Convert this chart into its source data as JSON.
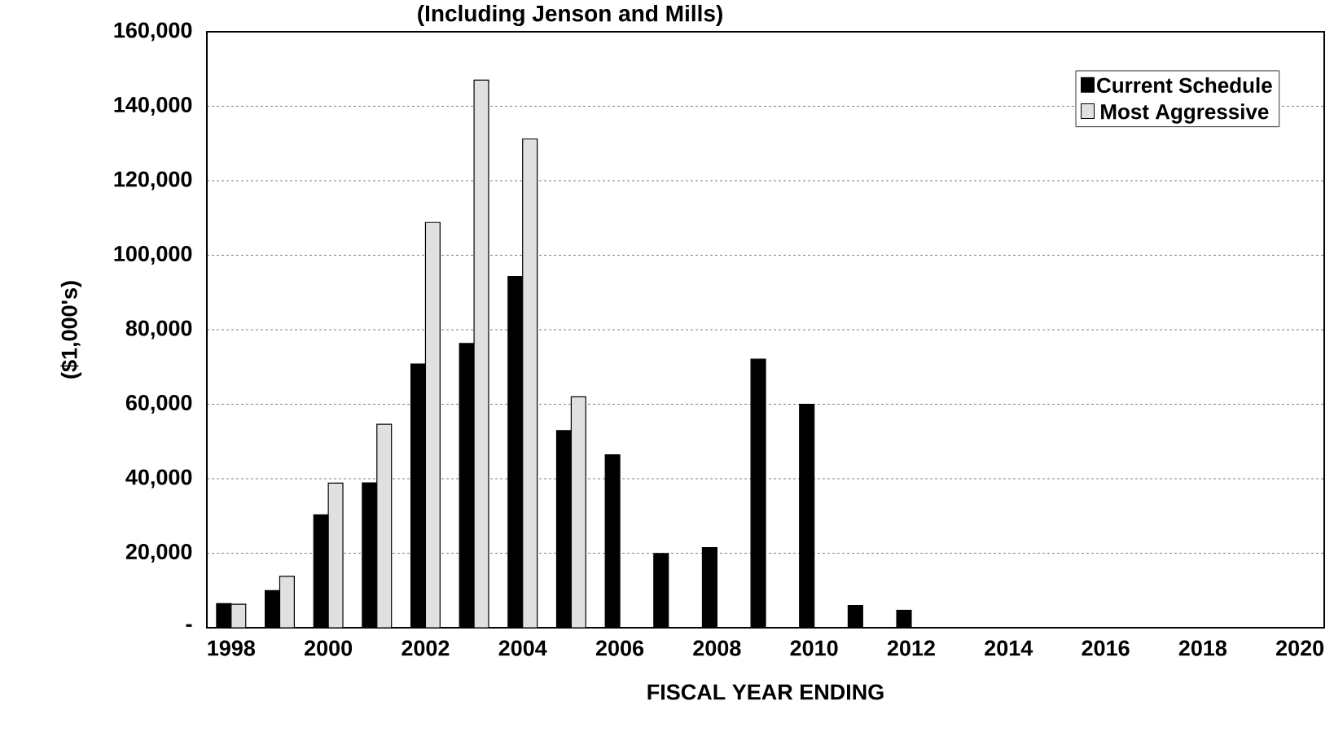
{
  "chart_data": {
    "type": "bar",
    "title": "(Including Jenson and Mills)",
    "xlabel": "FISCAL YEAR ENDING",
    "ylabel": "($1,000's)",
    "categories": [
      "1998",
      null,
      "2000",
      null,
      "2002",
      null,
      "2004",
      null,
      "2006",
      null,
      "2008",
      null,
      "2010",
      null,
      "2012",
      null,
      "2014",
      null,
      "2016",
      null,
      "2018",
      null,
      "2020"
    ],
    "series": [
      {
        "name": "Current Schedule",
        "color": "#000000",
        "values": [
          6500,
          10000,
          30300,
          38900,
          70800,
          76300,
          94300,
          52900,
          46400,
          19900,
          21500,
          72100,
          60000,
          6000,
          4700,
          null,
          null,
          null,
          null,
          null,
          null,
          null,
          null
        ]
      },
      {
        "name": "Most Aggressive",
        "color": "#e0e0e0",
        "values": [
          6300,
          13800,
          38800,
          54600,
          108800,
          147000,
          131200,
          62000,
          null,
          null,
          null,
          null,
          null,
          null,
          null,
          null,
          null,
          null,
          null,
          null,
          null,
          null,
          null
        ]
      }
    ],
    "ylim": [
      0,
      160000
    ],
    "yticks": [
      {
        "value": 0,
        "label": "-"
      },
      {
        "value": 20000,
        "label": "20,000"
      },
      {
        "value": 40000,
        "label": "40,000"
      },
      {
        "value": 60000,
        "label": "60,000"
      },
      {
        "value": 80000,
        "label": "80,000"
      },
      {
        "value": 100000,
        "label": "100,000"
      },
      {
        "value": 120000,
        "label": "120,000"
      },
      {
        "value": 140000,
        "label": "140,000"
      },
      {
        "value": 160000,
        "label": "160,000"
      }
    ],
    "grid": "y",
    "legend": "top right"
  }
}
